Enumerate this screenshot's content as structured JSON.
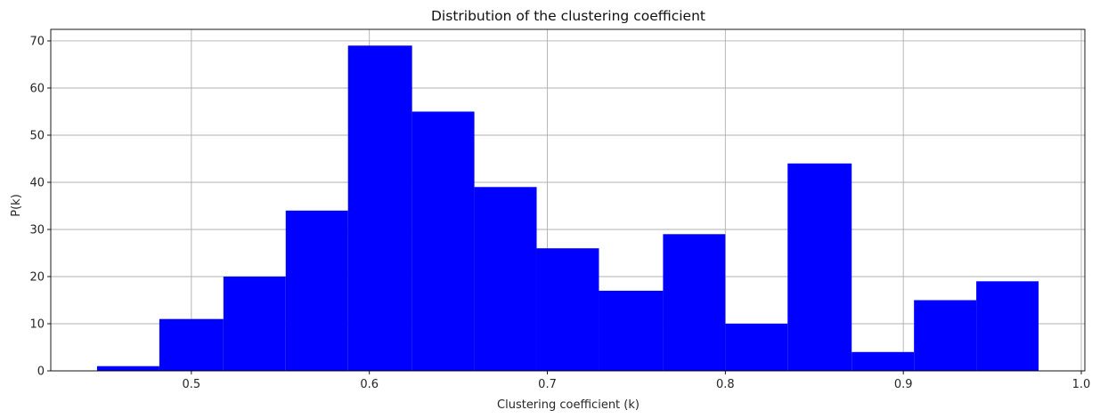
{
  "chart_data": {
    "type": "bar",
    "title": "Distribution of the clustering coefficient",
    "xlabel": "Clustering coefficient (k)",
    "ylabel": "P(k)",
    "bin_edges": [
      0.447,
      0.482,
      0.518,
      0.553,
      0.588,
      0.624,
      0.659,
      0.694,
      0.729,
      0.765,
      0.8,
      0.835,
      0.871,
      0.906,
      0.941,
      0.976
    ],
    "values": [
      1,
      11,
      20,
      34,
      69,
      55,
      39,
      26,
      17,
      29,
      10,
      44,
      4,
      15,
      19
    ],
    "xlim": [
      0.421,
      1.002
    ],
    "ylim": [
      0,
      72.45
    ],
    "x_ticks": [
      "0.5",
      "0.6",
      "0.7",
      "0.8",
      "0.9",
      "1.0"
    ],
    "y_ticks": [
      "0",
      "10",
      "20",
      "30",
      "40",
      "50",
      "60",
      "70"
    ],
    "grid": true,
    "bar_color": "#0000ff",
    "grid_color": "#b0b0b0"
  }
}
